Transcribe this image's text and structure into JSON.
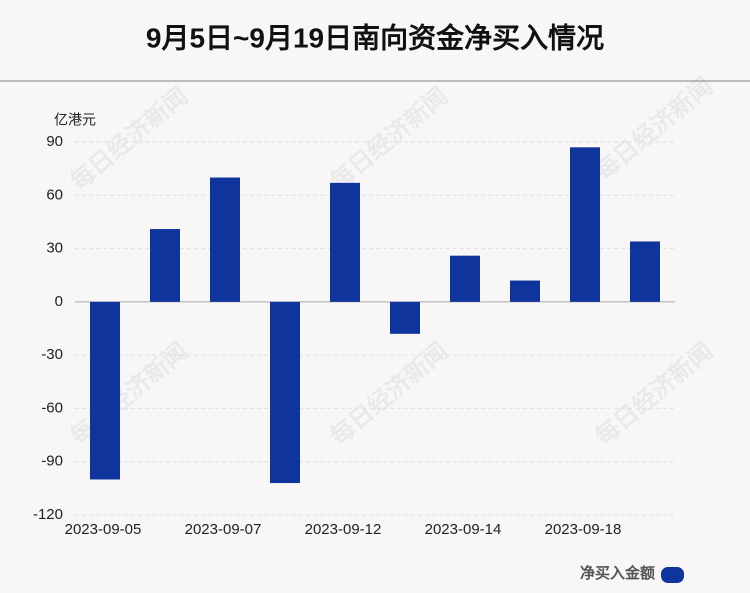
{
  "chart_data": {
    "type": "bar",
    "title": "9月5日~9月19日南向资金净买入情况",
    "y_label": "亿港元",
    "watermark": "每日经济新闻",
    "categories": [
      "2023-09-05",
      null,
      "2023-09-07",
      null,
      "2023-09-12",
      null,
      "2023-09-14",
      null,
      "2023-09-18",
      null
    ],
    "series": [
      {
        "name": "净买入金额",
        "color": "#0f349c",
        "values": [
          -100,
          41,
          70,
          -102,
          67,
          -18,
          26,
          12,
          87,
          34
        ]
      }
    ],
    "ylim": [
      -120,
      90
    ],
    "yticks": [
      -120,
      -90,
      -60,
      -30,
      0,
      30,
      60,
      90
    ],
    "grid": true,
    "legend": "bottom-right"
  }
}
